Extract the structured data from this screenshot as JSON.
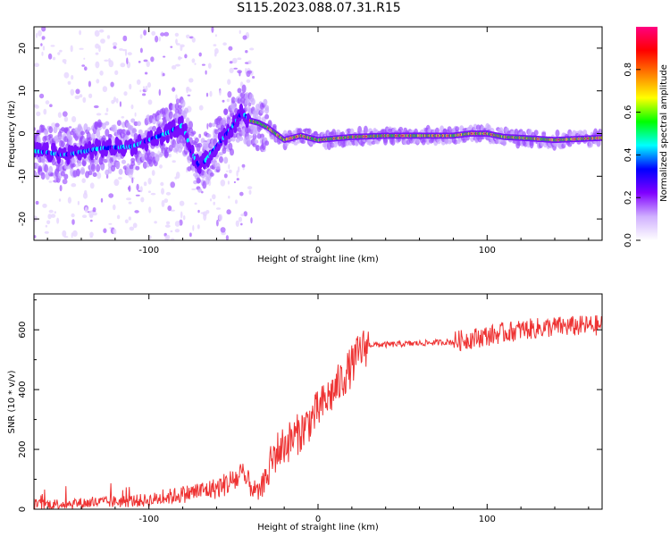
{
  "title": "S115.2023.088.07.31.R15",
  "chart_data": [
    {
      "type": "heatmap",
      "xlabel": "Height of straight line (km)",
      "ylabel": "Frequency (Hz)",
      "xlim": [
        -168,
        168
      ],
      "ylim": [
        -25,
        25
      ],
      "xticks": [
        -100,
        0,
        100
      ],
      "yticks": [
        -20,
        -10,
        0,
        10,
        20
      ],
      "colorbar": {
        "label": "Normalized spectral amplitude",
        "range": [
          0.0,
          1.0
        ],
        "ticks": [
          0.0,
          0.2,
          0.4,
          0.6,
          0.8
        ],
        "colors": [
          "#ffffff",
          "#d0b0ff",
          "#8000ff",
          "#0000ff",
          "#00ffff",
          "#00ff00",
          "#ffff00",
          "#ff8000",
          "#ff0000",
          "#ff0080"
        ]
      },
      "ridge": {
        "x": [
          -168,
          -150,
          -130,
          -110,
          -100,
          -90,
          -80,
          -75,
          -70,
          -60,
          -50,
          -45,
          -40,
          -35,
          -30,
          -25,
          -20,
          -15,
          -10,
          0,
          20,
          40,
          60,
          80,
          90,
          100,
          110,
          120,
          140,
          168
        ],
        "y": [
          -4,
          -5,
          -3.5,
          -3,
          -1.5,
          0,
          2,
          -4,
          -8,
          -3,
          2,
          5,
          3,
          2.5,
          1.5,
          0,
          -1.5,
          -1,
          -0.5,
          -1.5,
          -0.8,
          -0.5,
          -0.5,
          -0.5,
          0,
          0,
          -0.8,
          -1,
          -1.5,
          -1
        ]
      }
    },
    {
      "type": "line",
      "xlabel": "Height of straight line (km)",
      "ylabel": "SNR (10 * v/v)",
      "xlim": [
        -168,
        168
      ],
      "ylim": [
        0,
        720
      ],
      "xticks": [
        -100,
        0,
        100
      ],
      "yticks": [
        0,
        200,
        400,
        600
      ],
      "color": "#ee3333",
      "trend": {
        "x": [
          -168,
          -140,
          -120,
          -100,
          -80,
          -60,
          -45,
          -35,
          -25,
          -10,
          0,
          10,
          20,
          25,
          30,
          40,
          60,
          80,
          100,
          120,
          140,
          168
        ],
        "y": [
          15,
          20,
          25,
          30,
          50,
          70,
          110,
          50,
          190,
          260,
          330,
          400,
          480,
          530,
          550,
          550,
          555,
          560,
          580,
          600,
          610,
          615
        ]
      }
    }
  ]
}
